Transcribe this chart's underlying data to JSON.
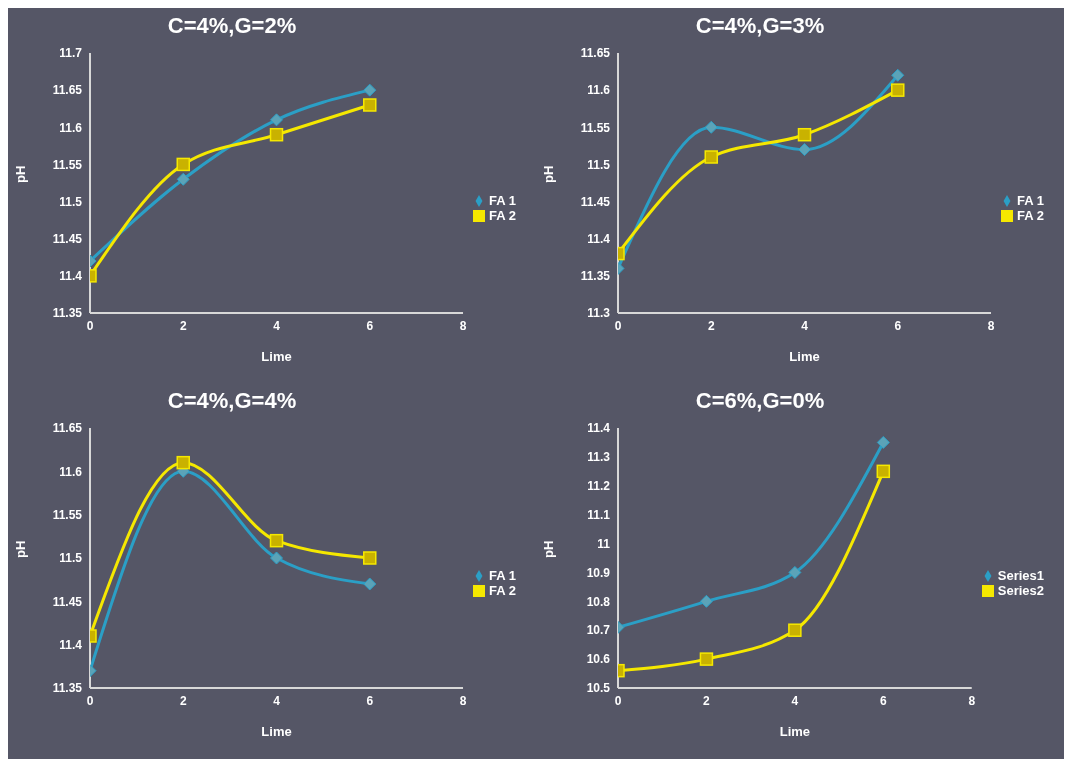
{
  "chart_data": [
    {
      "type": "line",
      "title": "C=4%,G=2%",
      "xlabel": "Lime",
      "ylabel": "pH",
      "x": [
        0,
        2,
        4,
        6
      ],
      "xlim": [
        0,
        8
      ],
      "xticks": [
        0,
        2,
        4,
        6,
        8
      ],
      "ylim": [
        11.35,
        11.7
      ],
      "yticks": [
        11.35,
        11.4,
        11.45,
        11.5,
        11.55,
        11.6,
        11.65,
        11.7
      ],
      "grid": false,
      "legend": "right",
      "line_style": "solid",
      "series": [
        {
          "name": "FA 1",
          "color": "#2b9fc6",
          "marker": "diamond",
          "values": [
            11.42,
            11.53,
            11.61,
            11.65
          ]
        },
        {
          "name": "FA 2",
          "color": "#f5e800",
          "marker": "square",
          "values": [
            11.4,
            11.55,
            11.59,
            11.63
          ]
        }
      ]
    },
    {
      "type": "line",
      "title": "C=4%,G=3%",
      "xlabel": "Lime",
      "ylabel": "pH",
      "x": [
        0,
        2,
        4,
        6
      ],
      "xlim": [
        0,
        8
      ],
      "xticks": [
        0,
        2,
        4,
        6,
        8
      ],
      "ylim": [
        11.3,
        11.65
      ],
      "yticks": [
        11.3,
        11.35,
        11.4,
        11.45,
        11.5,
        11.55,
        11.6,
        11.65
      ],
      "grid": false,
      "legend": "right",
      "line_style": "solid",
      "series": [
        {
          "name": "FA 1",
          "color": "#2b9fc6",
          "marker": "diamond",
          "values": [
            11.36,
            11.55,
            11.52,
            11.62
          ]
        },
        {
          "name": "FA 2",
          "color": "#f5e800",
          "marker": "square",
          "values": [
            11.38,
            11.51,
            11.54,
            11.6
          ]
        }
      ]
    },
    {
      "type": "line",
      "title": "C=4%,G=4%",
      "xlabel": "Lime",
      "ylabel": "pH",
      "x": [
        0,
        2,
        4,
        6
      ],
      "xlim": [
        0,
        8
      ],
      "xticks": [
        0,
        2,
        4,
        6,
        8
      ],
      "ylim": [
        11.35,
        11.65
      ],
      "yticks": [
        11.35,
        11.4,
        11.45,
        11.5,
        11.55,
        11.6,
        11.65
      ],
      "grid": false,
      "legend": "right",
      "line_style": "solid",
      "series": [
        {
          "name": "FA 1",
          "color": "#2b9fc6",
          "marker": "diamond",
          "values": [
            11.37,
            11.6,
            11.5,
            11.47
          ]
        },
        {
          "name": "FA 2",
          "color": "#f5e800",
          "marker": "square",
          "values": [
            11.41,
            11.61,
            11.52,
            11.5
          ]
        }
      ]
    },
    {
      "type": "line",
      "title": "C=6%,G=0%",
      "xlabel": "Lime",
      "ylabel": "pH",
      "x": [
        0,
        2,
        4,
        6
      ],
      "xlim": [
        0,
        8
      ],
      "xticks": [
        0,
        2,
        4,
        6,
        8
      ],
      "ylim": [
        10.5,
        11.4
      ],
      "yticks": [
        10.5,
        10.6,
        10.7,
        10.8,
        10.9,
        11,
        11.1,
        11.2,
        11.3,
        11.4
      ],
      "grid": false,
      "legend": "right",
      "line_style": "solid",
      "series": [
        {
          "name": "Series1",
          "color": "#2b9fc6",
          "marker": "diamond",
          "values": [
            10.71,
            10.8,
            10.9,
            11.35
          ]
        },
        {
          "name": "Series2",
          "color": "#f5e800",
          "marker": "square",
          "values": [
            10.56,
            10.6,
            10.7,
            11.25
          ]
        }
      ]
    }
  ]
}
